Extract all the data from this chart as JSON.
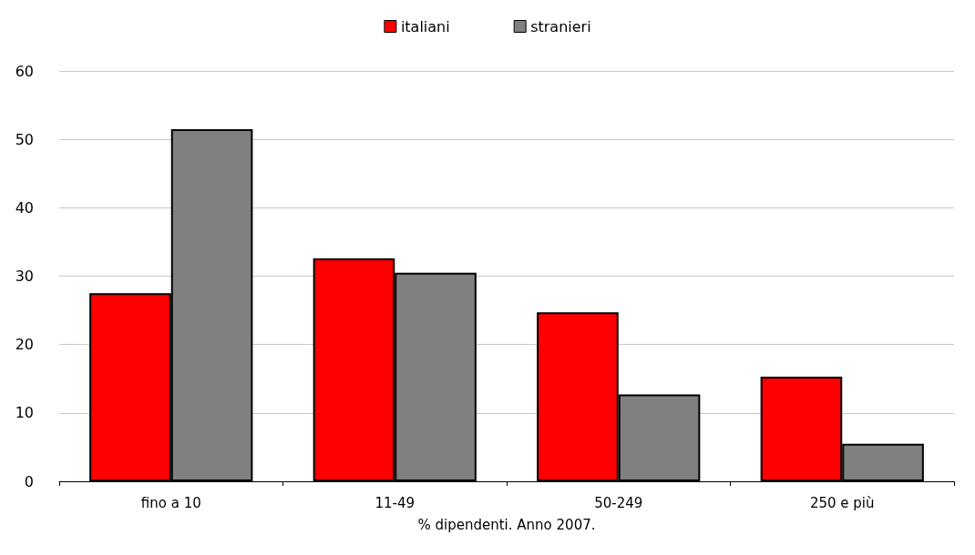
{
  "chart_data": {
    "type": "bar",
    "xlabel": "% dipendenti. Anno 2007.",
    "categories": [
      "fino a 10",
      "11-49",
      "50-249",
      "250 e più"
    ],
    "series": [
      {
        "name": "italiani",
        "color": "#ff0000",
        "values": [
          27.5,
          32.6,
          24.7,
          15.3
        ]
      },
      {
        "name": "stranieri",
        "color": "#808080",
        "values": [
          51.5,
          30.5,
          12.7,
          5.5
        ]
      }
    ],
    "ylim": [
      0,
      60
    ],
    "yticks": [
      0,
      10,
      20,
      30,
      40,
      50,
      60
    ],
    "grid": "y",
    "legend": "top"
  }
}
